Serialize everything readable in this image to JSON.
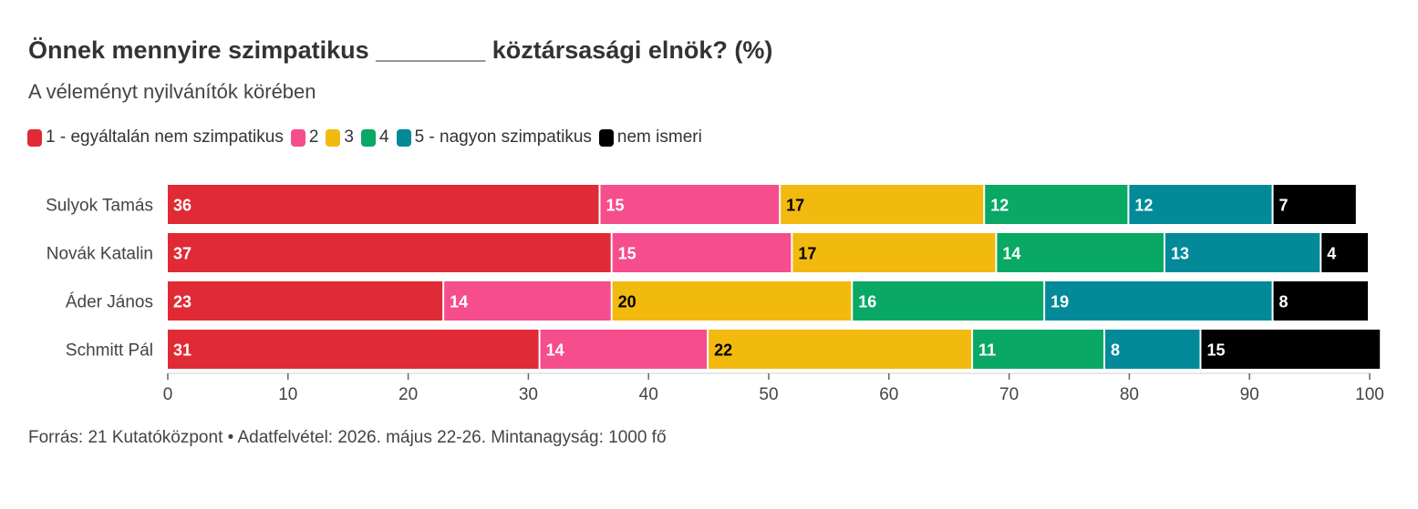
{
  "chart_data": {
    "type": "bar",
    "orientation": "horizontal",
    "stacked": true,
    "title": "Önnek mennyire szimpatikus ________ köztársasági elnök? (%)",
    "subtitle": "A véleményt nyilvánítók körében",
    "categories": [
      "Sulyok Tamás",
      "Novák Katalin",
      "Áder János",
      "Schmitt Pál"
    ],
    "series": [
      {
        "name": "1 - egyáltalán nem szimpatikus",
        "color": "#e02a35",
        "label_color": "#ffffff",
        "values": [
          36,
          37,
          23,
          31
        ]
      },
      {
        "name": "2",
        "color": "#f64d8c",
        "label_color": "#ffffff",
        "values": [
          15,
          15,
          14,
          14
        ]
      },
      {
        "name": "3",
        "color": "#f2b90f",
        "label_color": "#000000",
        "values": [
          17,
          17,
          20,
          22
        ]
      },
      {
        "name": "4",
        "color": "#0aa865",
        "label_color": "#ffffff",
        "values": [
          12,
          14,
          16,
          11
        ]
      },
      {
        "name": "5 - nagyon szimpatikus",
        "color": "#028a99",
        "label_color": "#ffffff",
        "values": [
          12,
          13,
          19,
          8
        ]
      },
      {
        "name": "nem ismeri",
        "color": "#000000",
        "label_color": "#ffffff",
        "values": [
          7,
          4,
          8,
          15
        ]
      }
    ],
    "xlim": [
      0,
      100
    ],
    "xticks": [
      0,
      10,
      20,
      30,
      40,
      50,
      60,
      70,
      80,
      90,
      100
    ],
    "grid": false,
    "legend_position": "top-left",
    "source": "Forrás: 21 Kutatóközpont • Adatfelvétel: 2026. május 22-26. Mintanagyság: 1000 fő"
  }
}
